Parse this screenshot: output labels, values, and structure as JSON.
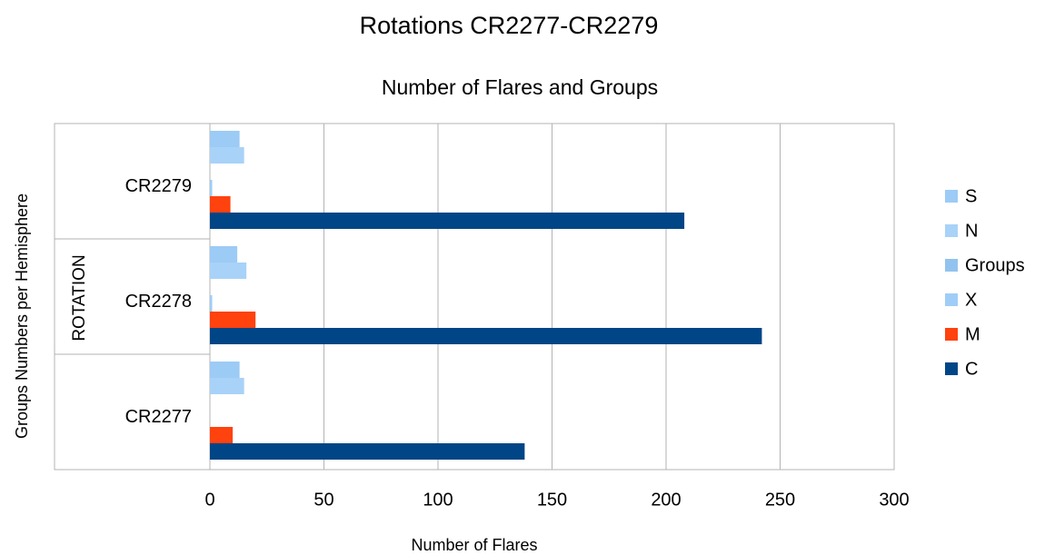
{
  "chart_data": {
    "type": "bar",
    "orientation": "horizontal",
    "title": "Rotations CR2277-CR2279",
    "subtitle": "Number of Flares and Groups",
    "xlabel": "Number of Flares",
    "ylabels": [
      "Groups Numbers per Hemisphere",
      "ROTATION"
    ],
    "categories": [
      "CR2277",
      "CR2278",
      "CR2279"
    ],
    "series": [
      {
        "name": "S",
        "color": "#9ccbf5",
        "values": [
          13,
          12,
          13
        ]
      },
      {
        "name": "N",
        "color": "#a8d2f8",
        "values": [
          15,
          16,
          15
        ]
      },
      {
        "name": "Groups",
        "color": "#92c3ef",
        "values": [
          0,
          0,
          0
        ]
      },
      {
        "name": "X",
        "color": "#9fcdf7",
        "values": [
          0,
          1,
          1
        ]
      },
      {
        "name": "M",
        "color": "#ff420e",
        "values": [
          10,
          20,
          9
        ]
      },
      {
        "name": "C",
        "color": "#004586",
        "values": [
          138,
          242,
          208
        ]
      }
    ],
    "xlim": [
      0,
      300
    ],
    "xticks": [
      0,
      50,
      100,
      150,
      200,
      250,
      300
    ],
    "grid": true,
    "legend": "right"
  }
}
